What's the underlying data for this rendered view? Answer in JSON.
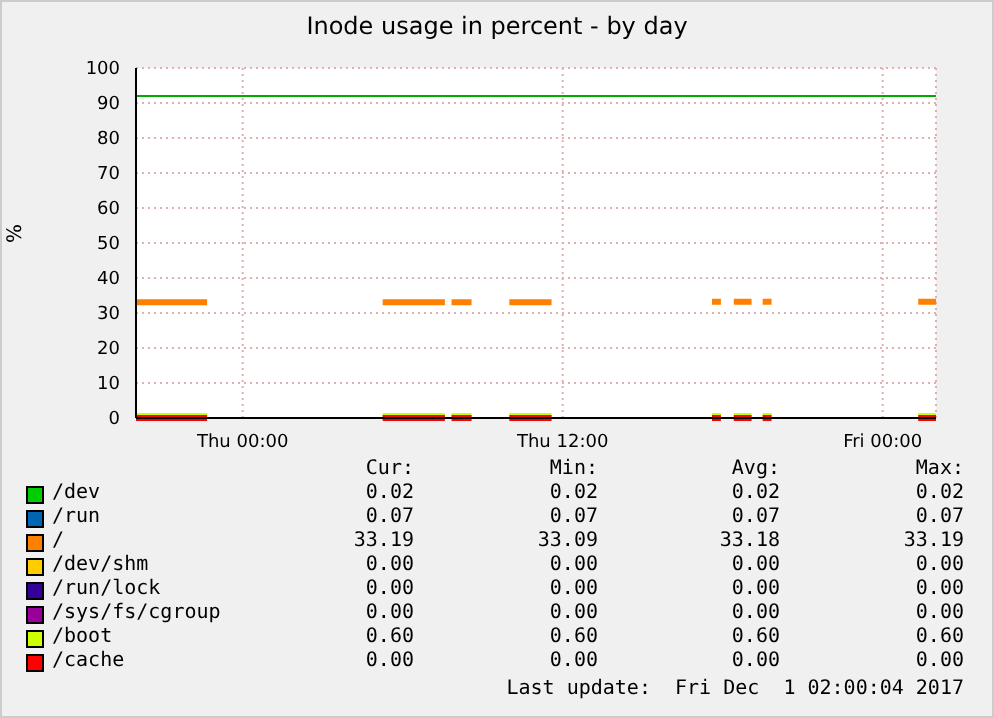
{
  "chart_data": {
    "type": "line",
    "title": "Inode usage in percent - by day",
    "ylabel": "%",
    "x": [
      "2017-11-29T20:00",
      "2017-11-29T22:40",
      "2017-11-29T23:00",
      "2017-11-30T05:15",
      "2017-11-30T07:35",
      "2017-11-30T07:42",
      "2017-11-30T07:50",
      "2017-11-30T08:35",
      "2017-11-30T09:00",
      "2017-11-30T10:00",
      "2017-11-30T11:35",
      "2017-11-30T14:00",
      "2017-11-30T17:36",
      "2017-11-30T17:56",
      "2017-11-30T18:05",
      "2017-11-30T18:25",
      "2017-11-30T19:05",
      "2017-11-30T19:15",
      "2017-11-30T19:30",
      "2017-11-30T19:50",
      "2017-11-30T22:00",
      "2017-12-01T01:20",
      "2017-12-01T02:00"
    ],
    "xlim": [
      "2017-11-29T20:00",
      "2017-12-01T02:00"
    ],
    "xticks": [
      {
        "value": "2017-11-30T00:00",
        "label": "Thu 00:00"
      },
      {
        "value": "2017-11-30T12:00",
        "label": "Thu 12:00"
      },
      {
        "value": "2017-12-01T00:00",
        "label": "Fri 00:00"
      }
    ],
    "ylim": [
      0,
      100
    ],
    "yticks": [
      0,
      10,
      20,
      30,
      40,
      50,
      60,
      70,
      80,
      90,
      100
    ],
    "grid": true,
    "legend": "bottom",
    "marker": "none",
    "line_style": "solid",
    "ref_lines": [
      {
        "axis": "y",
        "value": 92,
        "color": "#00aa00"
      }
    ],
    "series": [
      {
        "name": "/dev",
        "color": "#00cc00",
        "values": [
          null,
          null,
          null,
          null,
          null,
          null,
          null,
          null,
          null,
          null,
          null,
          null,
          null,
          null,
          null,
          null,
          null,
          null,
          null,
          null,
          null,
          null,
          null
        ]
      },
      {
        "name": "/run",
        "color": "#0066b3",
        "values": [
          null,
          null,
          null,
          null,
          null,
          null,
          null,
          null,
          null,
          null,
          null,
          null,
          null,
          null,
          null,
          null,
          null,
          null,
          null,
          null,
          null,
          null,
          null
        ]
      },
      {
        "name": "/",
        "color": "#ff8000",
        "values": [
          33.1,
          33.1,
          null,
          33.1,
          33.1,
          null,
          33.1,
          33.1,
          null,
          33.1,
          33.1,
          null,
          33.2,
          33.2,
          null,
          33.2,
          33.2,
          null,
          33.2,
          33.2,
          null,
          33.2,
          33.2
        ]
      },
      {
        "name": "/dev/shm",
        "color": "#ffcc00",
        "values": [
          null,
          null,
          null,
          null,
          null,
          null,
          null,
          null,
          null,
          null,
          null,
          null,
          null,
          null,
          null,
          null,
          null,
          null,
          null,
          null,
          null,
          null,
          null
        ]
      },
      {
        "name": "/run/lock",
        "color": "#330099",
        "values": [
          null,
          null,
          null,
          null,
          null,
          null,
          null,
          null,
          null,
          null,
          null,
          null,
          null,
          null,
          null,
          null,
          null,
          null,
          null,
          null,
          null,
          null,
          null
        ]
      },
      {
        "name": "/sys/fs/cgroup",
        "color": "#990099",
        "values": [
          null,
          null,
          null,
          null,
          null,
          null,
          null,
          null,
          null,
          null,
          null,
          null,
          null,
          null,
          null,
          null,
          null,
          null,
          null,
          null,
          null,
          null,
          null
        ]
      },
      {
        "name": "/boot",
        "color": "#ccff00",
        "values": [
          0.6,
          0.6,
          null,
          0.6,
          0.6,
          null,
          0.6,
          0.6,
          null,
          0.6,
          0.6,
          null,
          0.6,
          0.6,
          null,
          0.6,
          0.6,
          null,
          0.6,
          0.6,
          null,
          0.6,
          0.6
        ]
      },
      {
        "name": "/cache",
        "color": "#ff0000",
        "values": [
          0,
          0,
          null,
          0,
          0,
          null,
          0,
          0,
          null,
          0,
          0,
          null,
          0,
          0,
          null,
          0,
          0,
          null,
          0,
          0,
          null,
          0,
          0
        ]
      }
    ],
    "annotations": [
      "Cur:",
      "Min:",
      "Avg:",
      "Max:",
      "0.02",
      "0.02",
      "0.02",
      "0.02",
      "0.07",
      "0.07",
      "0.07",
      "0.07",
      "33.19",
      "33.09",
      "33.18",
      "33.19",
      "0.00",
      "0.00",
      "0.00",
      "0.00",
      "0.00",
      "0.00",
      "0.00",
      "0.00",
      "0.00",
      "0.00",
      "0.00",
      "0.00",
      "0.60",
      "0.60",
      "0.60",
      "0.60",
      "0.00",
      "0.00",
      "0.00",
      "0.00",
      "Last update:  Fri Dec  1 02:00:04 2017"
    ]
  }
}
